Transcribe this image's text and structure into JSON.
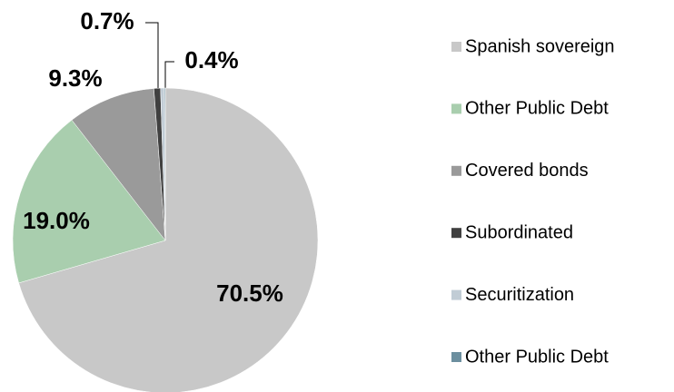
{
  "chart_data": {
    "type": "pie",
    "categories": [
      "Spanish sovereign",
      "Other Public Debt",
      "Covered bonds",
      "Subordinated",
      "Securitization",
      "Other Public Debt"
    ],
    "values": [
      70.5,
      19.0,
      9.3,
      0.7,
      0.4,
      0.1
    ],
    "value_labels": [
      "70.5%",
      "19.0%",
      "9.3%",
      "0.7%",
      "0.4%",
      null
    ],
    "colors": [
      "#c8c8c8",
      "#a9ceae",
      "#9a9a9a",
      "#404040",
      "#c1ccd5",
      "#6c8f9f"
    ],
    "legend": "right"
  }
}
